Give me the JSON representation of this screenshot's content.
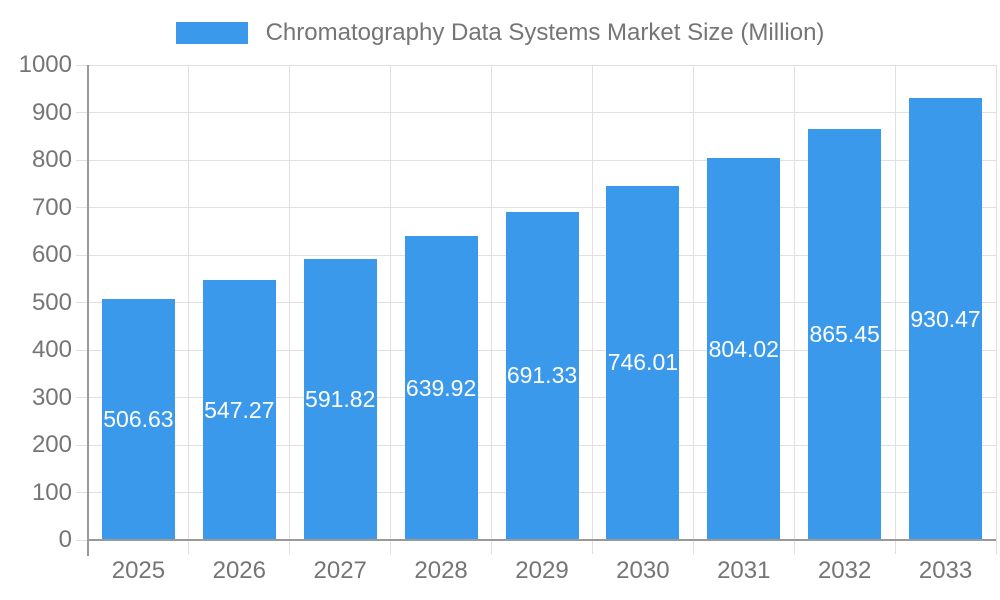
{
  "chart_data": {
    "type": "bar",
    "title": "Chromatography Data Systems Market Size (Million)",
    "categories": [
      "2025",
      "2026",
      "2027",
      "2028",
      "2029",
      "2030",
      "2031",
      "2032",
      "2033"
    ],
    "values": [
      506.63,
      547.27,
      591.82,
      639.92,
      691.33,
      746.01,
      804.02,
      865.45,
      930.47
    ],
    "value_label_decimals": 2,
    "xlabel": "",
    "ylabel": "",
    "ylim": [
      0,
      1000
    ],
    "ytick_step": 100,
    "grid": true,
    "legend_position": "top",
    "colors": {
      "bar": "#3B99EC",
      "bar_value_label": "#FFFFFF",
      "grid_line": "#E0E0E0",
      "axis_line": "#999999",
      "axis_text": "#757575",
      "legend_text": "#757575",
      "background": "#FFFFFF"
    }
  }
}
